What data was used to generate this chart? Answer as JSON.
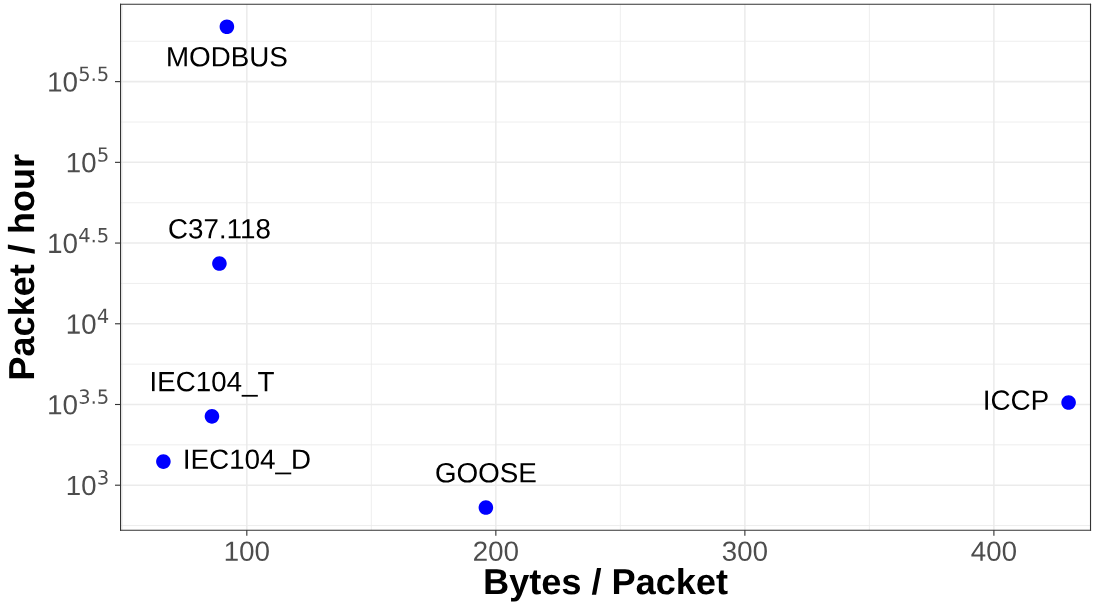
{
  "chart_data": {
    "type": "scatter",
    "xlabel": "Bytes / Packet",
    "ylabel": "Packet / hour",
    "log": "y",
    "x": [
      92,
      89,
      86,
      66.5,
      196,
      430
    ],
    "series": [
      {
        "color": "#0000ff",
        "values": [
          692000,
          23600,
          2670,
          1400,
          727,
          3250
        ]
      }
    ],
    "annotations": [
      {
        "text": "MODBUS",
        "x": 92,
        "y": 692000
      },
      {
        "text": "C37.118",
        "x": 89,
        "y": 23600
      },
      {
        "text": "IEC104_T",
        "x": 86,
        "y": 2670
      },
      {
        "text": "IEC104_D",
        "x": 66.5,
        "y": 1400
      },
      {
        "text": "GOOSE",
        "x": 196,
        "y": 727
      },
      {
        "text": "ICCP",
        "x": 430,
        "y": 3250
      }
    ],
    "xlim": [
      49.3,
      438.8
    ],
    "xticks": [
      100,
      200,
      300,
      400
    ],
    "ylim": [
      526,
      953000
    ],
    "yticks": [
      {
        "value": 1000,
        "label": "10$^{3}$"
      },
      {
        "value": 3162,
        "label": "10$^{3.5}$"
      },
      {
        "value": 10000,
        "label": "10$^{4}$"
      },
      {
        "value": 31623,
        "label": "10$^{4.5}$"
      },
      {
        "value": 100000,
        "label": "10$^{5}$"
      },
      {
        "value": 316228,
        "label": "10$^{5.5}$"
      }
    ],
    "grid": true,
    "marker": "circle",
    "legend": false
  }
}
